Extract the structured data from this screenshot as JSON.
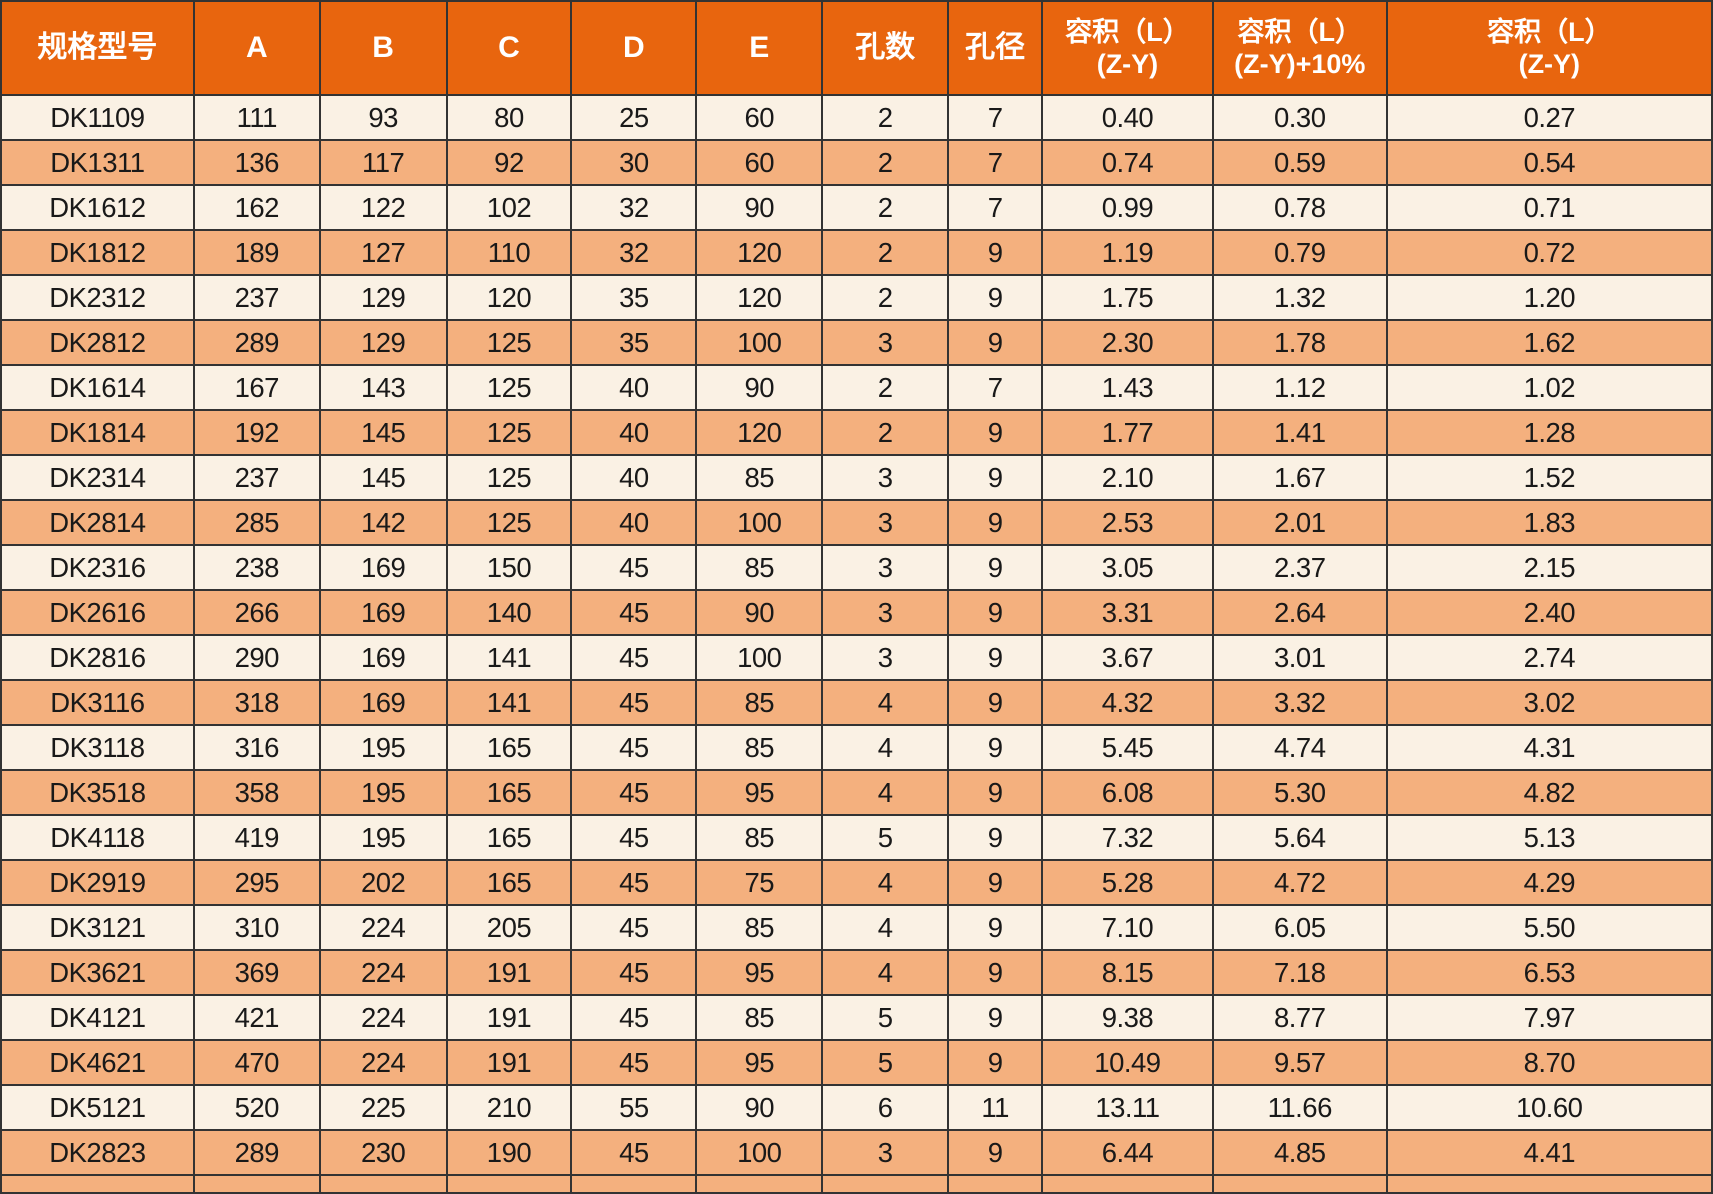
{
  "colors": {
    "header_bg": "#E8650E",
    "header_text": "#FFFFFF",
    "row_odd_bg": "#FAF1E4",
    "row_even_bg": "#F4B07E",
    "border": "#333333",
    "cell_text": "#191919"
  },
  "table": {
    "columns": [
      {
        "key": "model",
        "label": "规格型号"
      },
      {
        "key": "a",
        "label": "A"
      },
      {
        "key": "b",
        "label": "B"
      },
      {
        "key": "c",
        "label": "C"
      },
      {
        "key": "d",
        "label": "D"
      },
      {
        "key": "e",
        "label": "E"
      },
      {
        "key": "hole-count",
        "label": "孔数"
      },
      {
        "key": "hole-diameter",
        "label": "孔径"
      },
      {
        "key": "volume-zy",
        "label": "容积（L）",
        "sub": "(Z-Y)"
      },
      {
        "key": "volume-zy-plus10",
        "label": "容积（L）",
        "sub": "(Z-Y)+10%"
      },
      {
        "key": "volume-zy-2",
        "label": "容积（L）",
        "sub": "(Z-Y)"
      }
    ],
    "rows": [
      [
        "DK1109",
        "111",
        "93",
        "80",
        "25",
        "60",
        "2",
        "7",
        "0.40",
        "0.30",
        "0.27"
      ],
      [
        "DK1311",
        "136",
        "117",
        "92",
        "30",
        "60",
        "2",
        "7",
        "0.74",
        "0.59",
        "0.54"
      ],
      [
        "DK1612",
        "162",
        "122",
        "102",
        "32",
        "90",
        "2",
        "7",
        "0.99",
        "0.78",
        "0.71"
      ],
      [
        "DK1812",
        "189",
        "127",
        "110",
        "32",
        "120",
        "2",
        "9",
        "1.19",
        "0.79",
        "0.72"
      ],
      [
        "DK2312",
        "237",
        "129",
        "120",
        "35",
        "120",
        "2",
        "9",
        "1.75",
        "1.32",
        "1.20"
      ],
      [
        "DK2812",
        "289",
        "129",
        "125",
        "35",
        "100",
        "3",
        "9",
        "2.30",
        "1.78",
        "1.62"
      ],
      [
        "DK1614",
        "167",
        "143",
        "125",
        "40",
        "90",
        "2",
        "7",
        "1.43",
        "1.12",
        "1.02"
      ],
      [
        "DK1814",
        "192",
        "145",
        "125",
        "40",
        "120",
        "2",
        "9",
        "1.77",
        "1.41",
        "1.28"
      ],
      [
        "DK2314",
        "237",
        "145",
        "125",
        "40",
        "85",
        "3",
        "9",
        "2.10",
        "1.67",
        "1.52"
      ],
      [
        "DK2814",
        "285",
        "142",
        "125",
        "40",
        "100",
        "3",
        "9",
        "2.53",
        "2.01",
        "1.83"
      ],
      [
        "DK2316",
        "238",
        "169",
        "150",
        "45",
        "85",
        "3",
        "9",
        "3.05",
        "2.37",
        "2.15"
      ],
      [
        "DK2616",
        "266",
        "169",
        "140",
        "45",
        "90",
        "3",
        "9",
        "3.31",
        "2.64",
        "2.40"
      ],
      [
        "DK2816",
        "290",
        "169",
        "141",
        "45",
        "100",
        "3",
        "9",
        "3.67",
        "3.01",
        "2.74"
      ],
      [
        "DK3116",
        "318",
        "169",
        "141",
        "45",
        "85",
        "4",
        "9",
        "4.32",
        "3.32",
        "3.02"
      ],
      [
        "DK3118",
        "316",
        "195",
        "165",
        "45",
        "85",
        "4",
        "9",
        "5.45",
        "4.74",
        "4.31"
      ],
      [
        "DK3518",
        "358",
        "195",
        "165",
        "45",
        "95",
        "4",
        "9",
        "6.08",
        "5.30",
        "4.82"
      ],
      [
        "DK4118",
        "419",
        "195",
        "165",
        "45",
        "85",
        "5",
        "9",
        "7.32",
        "5.64",
        "5.13"
      ],
      [
        "DK2919",
        "295",
        "202",
        "165",
        "45",
        "75",
        "4",
        "9",
        "5.28",
        "4.72",
        "4.29"
      ],
      [
        "DK3121",
        "310",
        "224",
        "205",
        "45",
        "85",
        "4",
        "9",
        "7.10",
        "6.05",
        "5.50"
      ],
      [
        "DK3621",
        "369",
        "224",
        "191",
        "45",
        "95",
        "4",
        "9",
        "8.15",
        "7.18",
        "6.53"
      ],
      [
        "DK4121",
        "421",
        "224",
        "191",
        "45",
        "85",
        "5",
        "9",
        "9.38",
        "8.77",
        "7.97"
      ],
      [
        "DK4621",
        "470",
        "224",
        "191",
        "45",
        "95",
        "5",
        "9",
        "10.49",
        "9.57",
        "8.70"
      ],
      [
        "DK5121",
        "520",
        "225",
        "210",
        "55",
        "90",
        "6",
        "11",
        "13.11",
        "11.66",
        "10.60"
      ],
      [
        "DK2823",
        "289",
        "230",
        "190",
        "45",
        "100",
        "3",
        "9",
        "6.44",
        "4.85",
        "4.41"
      ]
    ]
  }
}
